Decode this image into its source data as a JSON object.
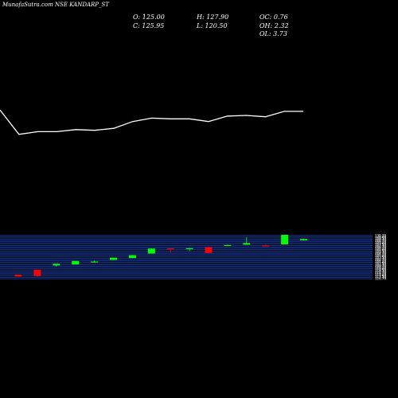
{
  "header": {
    "title": "MunafaSutra.com NSE KANDARP_ST",
    "open_label": "O: 125.00",
    "close_label": "C: 125.95",
    "high_label": "H: 127.90",
    "low_label": "L: 120.50",
    "oc_label": "OC: 0.76",
    "oh_label": "OH: 2.32",
    "ol_label": "OL: 3.73"
  },
  "colors": {
    "background": "#000000",
    "line": "#ffffff",
    "up_candle": "#00ff00",
    "down_candle": "#ff0000",
    "grid": "#1e3fa6"
  },
  "chart_data": [
    {
      "type": "line",
      "x": [
        0,
        1,
        2,
        3,
        4,
        5,
        6,
        7,
        8,
        9,
        10,
        11,
        12,
        13,
        14,
        15,
        16
      ],
      "values": [
        122.8,
        119.2,
        119.6,
        119.6,
        119.9,
        119.8,
        120.1,
        121.1,
        121.6,
        121.5,
        121.5,
        121.1,
        121.9,
        122.0,
        121.8,
        122.6,
        122.6
      ],
      "ylim": [
        112,
        132
      ]
    },
    {
      "type": "candlestick",
      "x": [
        0,
        1,
        2,
        3,
        4,
        5,
        6,
        7,
        8,
        9,
        10,
        11,
        12,
        13,
        14,
        15
      ],
      "open": [
        118.0,
        119.5,
        120.9,
        121.2,
        122.1,
        122.6,
        123.2,
        124.6,
        126.2,
        126.3,
        126.6,
        127.3,
        127.4,
        127.2,
        127.5,
        128.8
      ],
      "close": [
        117.4,
        117.6,
        121.4,
        122.3,
        122.1,
        123.3,
        124.1,
        126.2,
        126.0,
        126.3,
        124.8,
        127.3,
        127.9,
        127.0,
        130.5,
        129.2
      ],
      "high": [
        118.0,
        119.5,
        121.4,
        122.3,
        122.4,
        123.3,
        124.1,
        126.2,
        126.3,
        126.4,
        126.6,
        127.4,
        129.7,
        127.4,
        130.5,
        129.3
      ],
      "low": [
        117.4,
        117.3,
        120.5,
        121.2,
        121.8,
        122.6,
        123.2,
        124.6,
        124.9,
        125.4,
        124.7,
        127.2,
        127.4,
        126.9,
        127.5,
        128.7
      ],
      "ylim": [
        116,
        131
      ],
      "grid": true,
      "grid_levels": [
        130.3,
        129.9,
        129.5,
        129.1,
        128.7,
        128.3,
        127.9,
        127.5,
        127.1,
        126.7,
        126.3,
        125.9,
        125.5,
        125.1,
        124.7,
        124.3,
        123.9,
        123.5,
        123.1,
        122.7,
        122.3,
        121.9,
        121.5,
        121.1,
        120.7,
        120.3,
        119.9,
        119.5,
        119.1,
        118.7,
        118.3,
        117.9,
        117.5,
        117.1,
        116.7
      ],
      "tick_labels": [
        "130.30",
        "129.90",
        "129.50",
        "129.10",
        "128.70",
        "128.30",
        "127.90",
        "127.50",
        "127.10",
        "126.70",
        "126.30",
        "125.90",
        "125.50",
        "125.10",
        "124.70",
        "124.30",
        "123.90",
        "123.50",
        "123.10",
        "122.70",
        "122.30",
        "121.90",
        "121.50",
        "121.10",
        "120.70",
        "120.30",
        "119.90",
        "119.50",
        "119.10",
        "118.70",
        "118.30",
        "117.90",
        "117.50",
        "117.10",
        "116.70"
      ]
    }
  ]
}
